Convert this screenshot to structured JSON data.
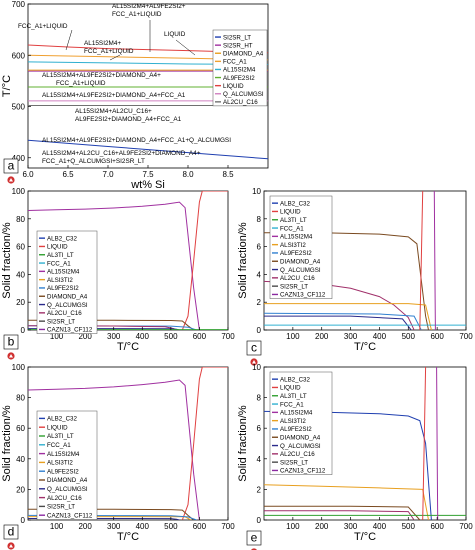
{
  "figure": {
    "panel_letters": [
      "a",
      "b",
      "c",
      "d",
      "e"
    ]
  },
  "chart_data": [
    {
      "id": "a",
      "type": "line",
      "xlabel": "wt% Si",
      "ylabel": "T/°C",
      "xlim": [
        6.0,
        9.0
      ],
      "ylim": [
        380,
        700
      ],
      "xticks": [
        6.0,
        6.5,
        7.0,
        7.5,
        8.0,
        8.5
      ],
      "yticks": [
        400,
        500,
        600,
        700
      ],
      "grid": false,
      "legend_position": "right",
      "legend": [
        {
          "label": "SI2SR_LT",
          "color": "#1f3fb0"
        },
        {
          "label": "SI2SR_HT",
          "color": "#a030a0"
        },
        {
          "label": "DIAMOND_A4",
          "color": "#e8a020"
        },
        {
          "label": "FCC_A1",
          "color": "#f0a030"
        },
        {
          "label": "AL15SI2M4",
          "color": "#30b0d0"
        },
        {
          "label": "AL9FE2SI2",
          "color": "#60b030"
        },
        {
          "label": "LIQUID",
          "color": "#e04040"
        },
        {
          "label": "Q_ALCUMGSI",
          "color": "#d080c0"
        },
        {
          "label": "AL2CU_C16",
          "color": "#707070"
        }
      ],
      "series": [
        {
          "color": "#e04040",
          "x": [
            6.0,
            6.5,
            7.0,
            7.5,
            8.0,
            8.5,
            9.0
          ],
          "y": [
            620,
            616,
            613,
            611,
            609,
            607,
            605
          ]
        },
        {
          "color": "#f0a030",
          "x": [
            6.0,
            7.0,
            8.0,
            9.0
          ],
          "y": [
            600,
            597,
            594,
            591
          ]
        },
        {
          "color": "#30b0d0",
          "x": [
            6.0,
            7.0,
            8.0,
            9.0
          ],
          "y": [
            587,
            585,
            583,
            582
          ]
        },
        {
          "color": "#a030a0",
          "x": [
            6.0,
            7.0,
            8.0,
            9.0
          ],
          "y": [
            569,
            569,
            569,
            569
          ]
        },
        {
          "color": "#e8a020",
          "x": [
            6.0,
            7.0,
            8.0,
            9.0
          ],
          "y": [
            571,
            571,
            571,
            571
          ]
        },
        {
          "color": "#60b030",
          "x": [
            6.0,
            7.0,
            8.0,
            9.0
          ],
          "y": [
            538,
            538,
            538,
            538
          ]
        },
        {
          "color": "#d080c0",
          "x": [
            6.0,
            7.0,
            8.0,
            9.0
          ],
          "y": [
            511,
            511,
            511,
            511
          ]
        },
        {
          "color": "#707070",
          "x": [
            6.0,
            7.0,
            8.0,
            9.0
          ],
          "y": [
            502,
            502,
            502,
            502
          ]
        },
        {
          "color": "#1f3fb0",
          "x": [
            6.0,
            7.0,
            8.0,
            9.0
          ],
          "y": [
            434,
            422,
            410,
            398
          ]
        }
      ],
      "annotations": [
        "AL15SI2M4+AL9FE2SI2+",
        "FCC_A1+LIQUID",
        "FCC_A1+LIQUID",
        "AL15SI2M4+",
        "FCC_A1+LIQUID",
        "LIQUID",
        "AL15SI2M4+AL9FE2SI2+DIAMOND_A4+",
        "FCC_A1+LIQUID",
        "AL15SI2M4+AL9FE2SI2+DIAMOND_A4+FCC_A1",
        "AL15SI2M4+AL2CU_C16+",
        "AL9FE2SI2+DIAMOND_A4+FCC_A1",
        "AL15SI2M4+AL9FE2SI2+DIAMOND_A4+FCC_A1+Q_ALCUMGSI",
        "AL15SI2M4+AL2CU_C16+AL9FE2SI2+DIAMOND_A4+",
        "FCC_A1+Q_ALCUMGSI+SI2SR_LT"
      ]
    },
    {
      "id": "b",
      "type": "line",
      "xlabel": "T/°C",
      "ylabel": "Solid fraction/%",
      "xlim": [
        0,
        700
      ],
      "ylim": [
        0,
        100
      ],
      "xticks": [
        100,
        200,
        300,
        400,
        500,
        600,
        700
      ],
      "yticks": [
        0,
        20,
        40,
        60,
        80,
        100
      ],
      "grid": false,
      "legend_position": "center-left",
      "legend": [
        {
          "label": "ALB2_C32",
          "color": "#1f3fb0"
        },
        {
          "label": "LIQUID",
          "color": "#e04040"
        },
        {
          "label": "AL3TI_LT",
          "color": "#30a030"
        },
        {
          "label": "FCC_A1",
          "color": "#30b0d0"
        },
        {
          "label": "AL15SI2M4",
          "color": "#a030a0"
        },
        {
          "label": "ALSI3TI2",
          "color": "#e8a020"
        },
        {
          "label": "AL9FE2SI2",
          "color": "#3080d0"
        },
        {
          "label": "DIAMOND_A4",
          "color": "#7a4a20"
        },
        {
          "label": "Q_ALCUMGSI",
          "color": "#2a2a8a"
        },
        {
          "label": "AL2CU_C16",
          "color": "#a0306a"
        },
        {
          "label": "SI2SR_LT",
          "color": "#4a4a4a"
        },
        {
          "label": "CAZN13_CF112",
          "color": "#8a2aa0"
        }
      ],
      "series": [
        {
          "color": "#a030a0",
          "x": [
            0,
            100,
            200,
            300,
            400,
            480,
            530,
            550,
            580,
            600
          ],
          "y": [
            86,
            86.5,
            87,
            87.8,
            89,
            90.5,
            92,
            88,
            30,
            0
          ]
        },
        {
          "color": "#e04040",
          "x": [
            540,
            560,
            580,
            600,
            610,
            700
          ],
          "y": [
            0,
            10,
            50,
            92,
            100,
            100
          ]
        },
        {
          "color": "#7a4a20",
          "x": [
            0,
            300,
            500,
            540,
            560,
            580
          ],
          "y": [
            7,
            7,
            6.8,
            6.5,
            3,
            0
          ]
        },
        {
          "color": "#3080d0",
          "x": [
            0,
            300,
            500,
            560,
            590
          ],
          "y": [
            3,
            2.9,
            2.8,
            2,
            0
          ]
        },
        {
          "color": "#a0306a",
          "x": [
            0,
            300,
            480,
            510,
            520
          ],
          "y": [
            3,
            2.9,
            2.3,
            1,
            0
          ]
        },
        {
          "color": "#2a2a8a",
          "x": [
            0,
            300,
            500,
            520,
            530
          ],
          "y": [
            1,
            1,
            0.9,
            0.5,
            0
          ]
        },
        {
          "color": "#30a030",
          "x": [
            0,
            700
          ],
          "y": [
            0.3,
            0.3
          ]
        }
      ]
    },
    {
      "id": "c",
      "type": "line",
      "xlabel": "T/°C",
      "ylabel": "Solid fraction/%",
      "xlim": [
        0,
        700
      ],
      "ylim": [
        0,
        10
      ],
      "xticks": [
        100,
        200,
        300,
        400,
        500,
        600,
        700
      ],
      "yticks": [
        0,
        2,
        4,
        6,
        8,
        10
      ],
      "grid": false,
      "legend_position": "top-left",
      "legend": [
        {
          "label": "ALB2_C32",
          "color": "#1f3fb0"
        },
        {
          "label": "LIQUID",
          "color": "#e04040"
        },
        {
          "label": "AL3TI_LT",
          "color": "#30a030"
        },
        {
          "label": "FCC_A1",
          "color": "#30b0d0"
        },
        {
          "label": "AL15SI2M4",
          "color": "#a030a0"
        },
        {
          "label": "ALSI3TI2",
          "color": "#e8a020"
        },
        {
          "label": "AL9FE2SI2",
          "color": "#3080d0"
        },
        {
          "label": "DIAMOND_A4",
          "color": "#7a4a20"
        },
        {
          "label": "Q_ALCUMGSI",
          "color": "#2a2a8a"
        },
        {
          "label": "AL2CU_C16",
          "color": "#a0306a"
        },
        {
          "label": "SI2SR_LT",
          "color": "#4a4a4a"
        },
        {
          "label": "CAZN13_CF112",
          "color": "#8a2aa0"
        }
      ],
      "series": [
        {
          "color": "#7a4a20",
          "x": [
            0,
            200,
            400,
            500,
            530,
            560,
            570
          ],
          "y": [
            7,
            7,
            6.9,
            6.7,
            6.2,
            1,
            0
          ]
        },
        {
          "color": "#a0306a",
          "x": [
            0,
            100,
            200,
            300,
            400,
            450,
            500,
            520
          ],
          "y": [
            3.5,
            3.4,
            3.3,
            3.0,
            2.4,
            1.8,
            0.9,
            0
          ]
        },
        {
          "color": "#e8a020",
          "x": [
            0,
            500,
            560,
            580
          ],
          "y": [
            1.9,
            1.9,
            1.8,
            0
          ]
        },
        {
          "color": "#3080d0",
          "x": [
            0,
            400,
            520,
            545
          ],
          "y": [
            1.2,
            1.15,
            1.0,
            0
          ]
        },
        {
          "color": "#2a2a8a",
          "x": [
            0,
            300,
            480,
            510
          ],
          "y": [
            1.0,
            1.0,
            0.8,
            0
          ]
        },
        {
          "color": "#30b0d0",
          "x": [
            0,
            700
          ],
          "y": [
            0.35,
            0.35
          ]
        },
        {
          "color": "#e04040",
          "x": [
            540,
            545,
            550
          ],
          "y": [
            0,
            5,
            10
          ]
        },
        {
          "color": "#a030a0",
          "x": [
            590,
            592,
            594
          ],
          "y": [
            10,
            5,
            0
          ]
        }
      ]
    },
    {
      "id": "d",
      "type": "line",
      "xlabel": "T/°C",
      "ylabel": "Solid fraction/%",
      "xlim": [
        0,
        700
      ],
      "ylim": [
        0,
        100
      ],
      "xticks": [
        100,
        200,
        300,
        400,
        500,
        600,
        700
      ],
      "yticks": [
        0,
        20,
        40,
        60,
        80,
        100
      ],
      "grid": false,
      "legend_position": "center-left",
      "legend": [
        {
          "label": "ALB2_C32",
          "color": "#1f3fb0"
        },
        {
          "label": "LIQUID",
          "color": "#e04040"
        },
        {
          "label": "AL3TI_LT",
          "color": "#30a030"
        },
        {
          "label": "FCC_A1",
          "color": "#30b0d0"
        },
        {
          "label": "AL15SI2M4",
          "color": "#a030a0"
        },
        {
          "label": "ALSI3TI2",
          "color": "#e8a020"
        },
        {
          "label": "AL9FE2SI2",
          "color": "#3080d0"
        },
        {
          "label": "DIAMOND_A4",
          "color": "#7a4a20"
        },
        {
          "label": "Q_ALCUMGSI",
          "color": "#2a2a8a"
        },
        {
          "label": "AL2CU_C16",
          "color": "#a0306a"
        },
        {
          "label": "SI2SR_LT",
          "color": "#4a4a4a"
        },
        {
          "label": "CAZN13_CF112",
          "color": "#8a2aa0"
        }
      ],
      "series": [
        {
          "color": "#a030a0",
          "x": [
            0,
            100,
            200,
            300,
            400,
            480,
            530,
            550,
            580,
            600
          ],
          "y": [
            85,
            85.5,
            86,
            87,
            88.5,
            90,
            91.5,
            88,
            30,
            0
          ]
        },
        {
          "color": "#e04040",
          "x": [
            540,
            560,
            580,
            600,
            610,
            700
          ],
          "y": [
            0,
            10,
            50,
            92,
            100,
            100
          ]
        },
        {
          "color": "#7a4a20",
          "x": [
            0,
            300,
            500,
            540,
            560,
            580
          ],
          "y": [
            7,
            7,
            6.8,
            6.5,
            3,
            0
          ]
        },
        {
          "color": "#e8a020",
          "x": [
            0,
            400,
            550,
            570
          ],
          "y": [
            2.2,
            2.2,
            2.1,
            0
          ]
        },
        {
          "color": "#3080d0",
          "x": [
            0,
            300,
            500,
            560,
            590
          ],
          "y": [
            3,
            2.9,
            2.8,
            2,
            0
          ]
        },
        {
          "color": "#2a2a8a",
          "x": [
            0,
            300,
            500,
            520,
            530
          ],
          "y": [
            1,
            1,
            0.9,
            0.5,
            0
          ]
        }
      ]
    },
    {
      "id": "e",
      "type": "line",
      "xlabel": "T/°C",
      "ylabel": "Solid fraction/%",
      "xlim": [
        0,
        700
      ],
      "ylim": [
        0,
        10
      ],
      "xticks": [
        100,
        200,
        300,
        400,
        500,
        600,
        700
      ],
      "yticks": [
        0,
        2,
        4,
        6,
        8,
        10
      ],
      "grid": false,
      "legend_position": "top-left",
      "legend": [
        {
          "label": "ALB2_C32",
          "color": "#1f3fb0"
        },
        {
          "label": "LIQUID",
          "color": "#e04040"
        },
        {
          "label": "AL3TI_LT",
          "color": "#30a030"
        },
        {
          "label": "FCC_A1",
          "color": "#30b0d0"
        },
        {
          "label": "AL15SI2M4",
          "color": "#a030a0"
        },
        {
          "label": "ALSI3TI2",
          "color": "#e8a020"
        },
        {
          "label": "AL9FE2SI2",
          "color": "#3080d0"
        },
        {
          "label": "DIAMOND_A4",
          "color": "#7a4a20"
        },
        {
          "label": "Q_ALCUMGSI",
          "color": "#2a2a8a"
        },
        {
          "label": "AL2CU_C16",
          "color": "#a0306a"
        },
        {
          "label": "SI2SR_LT",
          "color": "#4a4a4a"
        },
        {
          "label": "CAZN13_CF112",
          "color": "#8a2aa0"
        }
      ],
      "series": [
        {
          "color": "#1f3fb0",
          "x": [
            0,
            200,
            400,
            500,
            540,
            560,
            580
          ],
          "y": [
            7.1,
            7.05,
            6.95,
            6.8,
            6.5,
            5,
            0
          ]
        },
        {
          "color": "#e8a020",
          "x": [
            0,
            200,
            400,
            550,
            570
          ],
          "y": [
            2.3,
            2.2,
            2.1,
            2.0,
            0
          ]
        },
        {
          "color": "#7a4a20",
          "x": [
            0,
            300,
            500,
            540
          ],
          "y": [
            0.9,
            0.9,
            0.85,
            0
          ]
        },
        {
          "color": "#a0306a",
          "x": [
            0,
            300,
            500,
            520
          ],
          "y": [
            0.6,
            0.6,
            0.55,
            0
          ]
        },
        {
          "color": "#30a030",
          "x": [
            0,
            700
          ],
          "y": [
            0.3,
            0.3
          ]
        },
        {
          "color": "#e04040",
          "x": [
            550,
            555,
            560
          ],
          "y": [
            0,
            5,
            10
          ]
        },
        {
          "color": "#a030a0",
          "x": [
            598,
            600,
            602
          ],
          "y": [
            10,
            5,
            0
          ]
        }
      ]
    }
  ]
}
